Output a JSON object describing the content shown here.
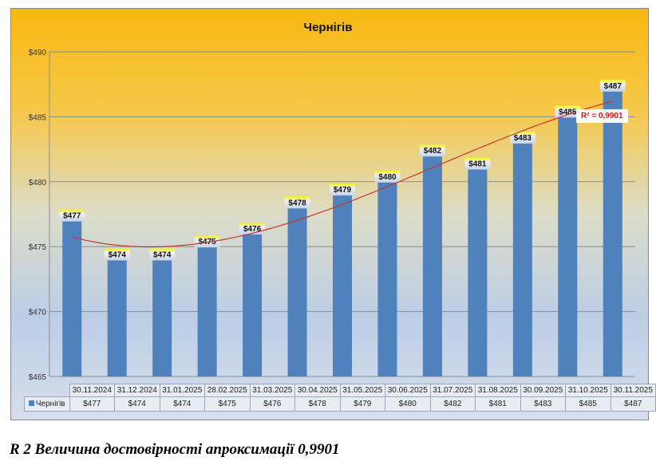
{
  "chart_data": {
    "type": "bar",
    "title": "Чернігів",
    "categories": [
      "30.11.2024",
      "31.12.2024",
      "31.01.2025",
      "28.02.2025",
      "31.03.2025",
      "30.04.2025",
      "31.05.2025",
      "30.06.2025",
      "31.07.2025",
      "31.08.2025",
      "30.09.2025",
      "31.10.2025",
      "30.11.2025"
    ],
    "series": [
      {
        "name": "Чернігів",
        "values": [
          477,
          474,
          474,
          475,
          476,
          478,
          479,
          480,
          482,
          481,
          483,
          485,
          487
        ],
        "color": "#4f81bd"
      }
    ],
    "value_labels": [
      "$477",
      "$474",
      "$474",
      "$475",
      "$476",
      "$478",
      "$479",
      "$480",
      "$482",
      "$481",
      "$483",
      "$485",
      "$487"
    ],
    "ylim": [
      465,
      490
    ],
    "yticks": [
      465,
      470,
      475,
      480,
      485,
      490
    ],
    "ytick_labels": [
      "$465",
      "$470",
      "$475",
      "$480",
      "$485",
      "$490"
    ],
    "grid": true,
    "trendline": {
      "type": "polynomial",
      "color": "#c0392b",
      "label": "R² = 0,9901"
    },
    "data_table": true
  },
  "caption": "R 2 Величина достовірності апроксимації 0,9901"
}
